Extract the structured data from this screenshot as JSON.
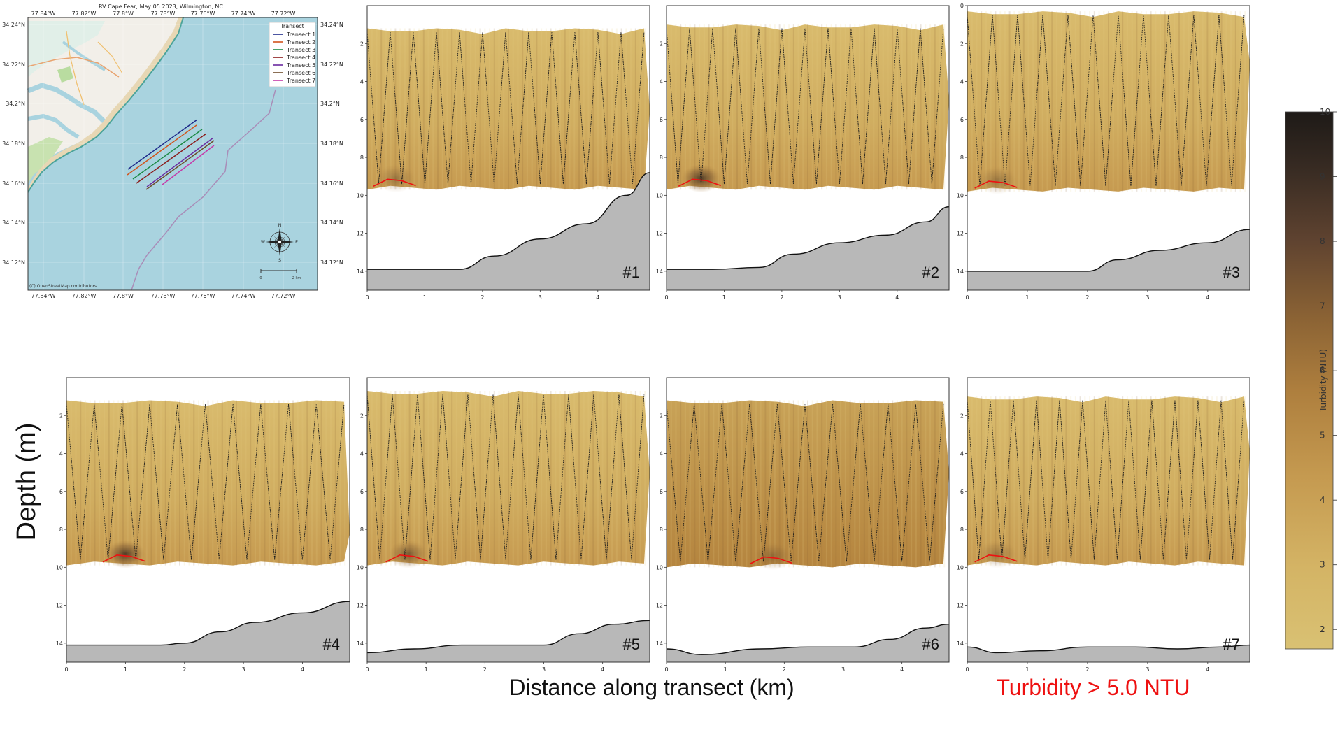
{
  "figure": {
    "ylabel": "Depth (m)",
    "xlabel": "Distance along transect (km)",
    "threshold_label": "Turbidity > 5.0 NTU",
    "threshold_color": "#ee1111"
  },
  "map": {
    "title": "RV Cape Fear, May 05 2023, Wilmington, NC",
    "lon_ticks": [
      "77.84°W",
      "77.82°W",
      "77.8°W",
      "77.78°W",
      "77.76°W",
      "77.74°W",
      "77.72°W"
    ],
    "lat_ticks": [
      "34.24°N",
      "34.22°N",
      "34.2°N",
      "34.18°N",
      "34.16°N",
      "34.14°N",
      "34.12°N"
    ],
    "legend_title": "Transect",
    "legend": [
      {
        "name": "Transect 1",
        "color": "#1f2a8a"
      },
      {
        "name": "Transect 2",
        "color": "#d2531c"
      },
      {
        "name": "Transect 3",
        "color": "#1c8a45"
      },
      {
        "name": "Transect 4",
        "color": "#8b1a1a"
      },
      {
        "name": "Transect 5",
        "color": "#6a2aa0"
      },
      {
        "name": "Transect 6",
        "color": "#6e4b2a"
      },
      {
        "name": "Transect 7",
        "color": "#c43aa8"
      }
    ],
    "attribution": "(C) OpenStreetMap contributors",
    "scale_labels": [
      "0",
      "2 km"
    ],
    "compass_letters": [
      "N",
      "E",
      "S",
      "W"
    ],
    "colors": {
      "sea": "#a9d3df",
      "land": "#f2efe9",
      "sand": "#e7d7b4",
      "grass": "#b9dca0"
    }
  },
  "colorbar": {
    "label": "Turbidity (NTU)",
    "ticks": [
      "2",
      "3",
      "4",
      "5",
      "6",
      "7",
      "8",
      "9",
      "10"
    ],
    "range": [
      1.7,
      10
    ],
    "colors": [
      "#d9c070",
      "#c9a55a",
      "#b98a46",
      "#8a6132",
      "#3a2b20",
      "#201a15"
    ]
  },
  "chart_data": [
    {
      "type": "heatmap",
      "panel": "#1",
      "xticks": [
        "0",
        "1",
        "2",
        "3",
        "4"
      ],
      "yticks": [
        "2",
        "4",
        "6",
        "8",
        "10",
        "12",
        "14"
      ],
      "xlim": [
        0,
        4.9
      ],
      "ylim": [
        15,
        0
      ],
      "top_depth": 1.2,
      "bottom_depth": 9.7,
      "n_casts": 12,
      "bathymetry": {
        "x": [
          0,
          0.8,
          1.6,
          2.2,
          3,
          3.8,
          4.5,
          4.9
        ],
        "depth": [
          13.9,
          13.9,
          13.9,
          13.2,
          12.3,
          11.5,
          10.0,
          8.8
        ]
      }
    },
    {
      "type": "heatmap",
      "panel": "#2",
      "xticks": [
        "0",
        "1",
        "2",
        "3",
        "4"
      ],
      "yticks": [
        "2",
        "4",
        "6",
        "8",
        "10",
        "12",
        "14"
      ],
      "xlim": [
        0,
        4.9
      ],
      "ylim": [
        15,
        0
      ],
      "top_depth": 1.0,
      "bottom_depth": 9.7,
      "n_casts": 12,
      "bathymetry": {
        "x": [
          0,
          0.8,
          1.6,
          2.2,
          3,
          3.8,
          4.5,
          4.9
        ],
        "depth": [
          13.9,
          13.9,
          13.8,
          13.1,
          12.5,
          12.1,
          11.4,
          10.6
        ]
      }
    },
    {
      "type": "heatmap",
      "panel": "#3",
      "xticks": [
        "0",
        "1",
        "2",
        "3",
        "4"
      ],
      "yticks": [
        "0",
        "2",
        "4",
        "6",
        "8",
        "10",
        "12",
        "14"
      ],
      "xlim": [
        0,
        4.7
      ],
      "ylim": [
        15,
        0
      ],
      "top_depth": 0.3,
      "bottom_depth": 9.8,
      "n_casts": 11,
      "bathymetry": {
        "x": [
          0,
          0.8,
          1.6,
          2.0,
          2.5,
          3.2,
          4.0,
          4.7
        ],
        "depth": [
          14.0,
          14.0,
          14.0,
          14.0,
          13.4,
          12.9,
          12.5,
          11.8
        ]
      }
    },
    {
      "type": "heatmap",
      "panel": "#4",
      "xticks": [
        "0",
        "1",
        "2",
        "3",
        "4"
      ],
      "yticks": [
        "2",
        "4",
        "6",
        "8",
        "10",
        "12",
        "14"
      ],
      "xlim": [
        0,
        4.8
      ],
      "ylim": [
        15,
        0
      ],
      "top_depth": 1.2,
      "bottom_depth": 9.9,
      "n_casts": 10,
      "bathymetry": {
        "x": [
          0,
          0.8,
          1.6,
          2.0,
          2.6,
          3.2,
          4.0,
          4.8
        ],
        "depth": [
          14.1,
          14.1,
          14.1,
          14.0,
          13.4,
          12.9,
          12.4,
          11.8
        ]
      }
    },
    {
      "type": "heatmap",
      "panel": "#5",
      "xticks": [
        "0",
        "1",
        "2",
        "3",
        "4"
      ],
      "yticks": [
        "2",
        "4",
        "6",
        "8",
        "10",
        "12",
        "14"
      ],
      "xlim": [
        0,
        4.8
      ],
      "ylim": [
        15,
        0
      ],
      "top_depth": 0.7,
      "bottom_depth": 9.9,
      "n_casts": 11,
      "bathymetry": {
        "x": [
          0,
          0.8,
          1.6,
          2.2,
          3,
          3.6,
          4.2,
          4.8
        ],
        "depth": [
          14.5,
          14.3,
          14.1,
          14.1,
          14.1,
          13.5,
          13.0,
          12.8
        ]
      }
    },
    {
      "type": "heatmap",
      "panel": "#6",
      "xticks": [
        "0",
        "1",
        "2",
        "3",
        "4"
      ],
      "yticks": [
        "2",
        "4",
        "6",
        "8",
        "10",
        "12",
        "14"
      ],
      "xlim": [
        0,
        4.8
      ],
      "ylim": [
        15,
        0
      ],
      "top_depth": 1.2,
      "bottom_depth": 10.0,
      "n_casts": 10,
      "bathymetry": {
        "x": [
          0,
          0.6,
          1.6,
          2.4,
          3.2,
          3.8,
          4.4,
          4.8
        ],
        "depth": [
          14.3,
          14.6,
          14.3,
          14.2,
          14.2,
          13.8,
          13.2,
          13.0
        ]
      }
    },
    {
      "type": "heatmap",
      "panel": "#7",
      "xticks": [
        "0",
        "1",
        "2",
        "3",
        "4"
      ],
      "yticks": [
        "2",
        "4",
        "6",
        "8",
        "10",
        "12",
        "14"
      ],
      "xlim": [
        0,
        4.7
      ],
      "ylim": [
        15,
        0
      ],
      "top_depth": 1.0,
      "bottom_depth": 9.9,
      "n_casts": 12,
      "bathymetry": {
        "x": [
          0,
          0.5,
          1.2,
          2.0,
          2.8,
          3.5,
          4.2,
          4.7
        ],
        "depth": [
          14.2,
          14.5,
          14.4,
          14.2,
          14.2,
          14.3,
          14.2,
          14.1
        ]
      }
    }
  ]
}
